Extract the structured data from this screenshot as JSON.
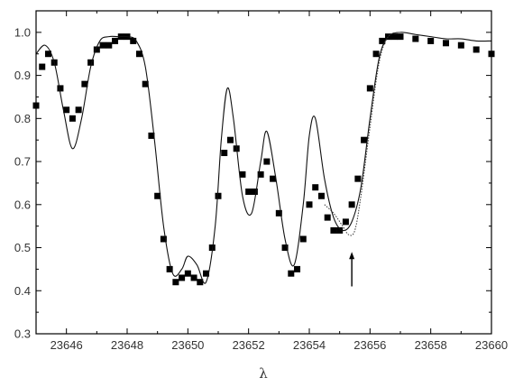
{
  "chart_data": {
    "type": "line",
    "title": "",
    "xlabel": "λ",
    "ylabel": "",
    "xlim": [
      23645,
      23660
    ],
    "ylim": [
      0.3,
      1.05
    ],
    "grid": false,
    "legend": "none",
    "x_ticks": [
      23646,
      23648,
      23650,
      23652,
      23654,
      23656,
      23658,
      23660
    ],
    "x_tick_labels": [
      "23646",
      "23648",
      "23650",
      "23652",
      "23654",
      "23656",
      "23658",
      "23660"
    ],
    "y_ticks": [
      0.3,
      0.4,
      0.5,
      0.6,
      0.7,
      0.8,
      0.9,
      1.0
    ],
    "y_tick_labels": [
      "0.3",
      "0.4",
      "0.5",
      "0.6",
      "0.7",
      "0.8",
      "0.9",
      "1.0"
    ],
    "series": [
      {
        "style": "markers",
        "color": "#000000",
        "x": [
          23645.0,
          23645.2,
          23645.4,
          23645.6,
          23645.8,
          23646.0,
          23646.2,
          23646.4,
          23646.6,
          23646.8,
          23647.0,
          23647.2,
          23647.4,
          23647.6,
          23647.8,
          23648.0,
          23648.2,
          23648.4,
          23648.6,
          23648.8,
          23649.0,
          23649.2,
          23649.4,
          23649.6,
          23649.8,
          23650.0,
          23650.2,
          23650.4,
          23650.6,
          23650.8,
          23651.0,
          23651.2,
          23651.4,
          23651.6,
          23651.8,
          23652.0,
          23652.2,
          23652.4,
          23652.6,
          23652.8,
          23653.0,
          23653.2,
          23653.4,
          23653.6,
          23653.8,
          23654.0,
          23654.2,
          23654.4,
          23654.6,
          23654.8,
          23655.0,
          23655.2,
          23655.4,
          23655.6,
          23655.8,
          23656.0,
          23656.2,
          23656.4,
          23656.6,
          23656.8,
          23657.0,
          23657.5,
          23658.0,
          23658.5,
          23659.0,
          23659.5,
          23660.0
        ],
        "values": [
          0.83,
          0.92,
          0.95,
          0.93,
          0.87,
          0.82,
          0.8,
          0.82,
          0.88,
          0.93,
          0.96,
          0.97,
          0.97,
          0.98,
          0.99,
          0.99,
          0.98,
          0.95,
          0.88,
          0.76,
          0.62,
          0.52,
          0.45,
          0.42,
          0.43,
          0.44,
          0.43,
          0.42,
          0.44,
          0.5,
          0.62,
          0.72,
          0.75,
          0.73,
          0.67,
          0.63,
          0.63,
          0.67,
          0.7,
          0.66,
          0.58,
          0.5,
          0.44,
          0.45,
          0.52,
          0.6,
          0.64,
          0.62,
          0.57,
          0.54,
          0.54,
          0.56,
          0.6,
          0.66,
          0.75,
          0.87,
          0.95,
          0.98,
          0.99,
          0.99,
          0.99,
          0.985,
          0.98,
          0.975,
          0.97,
          0.96,
          0.95
        ]
      },
      {
        "style": "solid",
        "color": "#111111",
        "x": [
          23645.0,
          23645.3,
          23645.6,
          23645.9,
          23646.2,
          23646.5,
          23646.8,
          23647.1,
          23647.4,
          23647.7,
          23648.0,
          23648.3,
          23648.6,
          23648.9,
          23649.2,
          23649.5,
          23649.8,
          23650.0,
          23650.3,
          23650.6,
          23650.9,
          23651.1,
          23651.3,
          23651.5,
          23651.8,
          23652.1,
          23652.4,
          23652.6,
          23652.9,
          23653.2,
          23653.5,
          23653.8,
          23654.0,
          23654.2,
          23654.5,
          23654.8,
          23655.1,
          23655.4,
          23655.7,
          23656.0,
          23656.3,
          23656.6,
          23657.0,
          23657.5,
          23658.0,
          23658.5,
          23659.0,
          23659.5,
          23660.0
        ],
        "values": [
          0.95,
          0.97,
          0.93,
          0.82,
          0.73,
          0.8,
          0.92,
          0.98,
          0.99,
          0.99,
          0.99,
          0.98,
          0.92,
          0.75,
          0.55,
          0.44,
          0.45,
          0.48,
          0.46,
          0.42,
          0.55,
          0.75,
          0.87,
          0.8,
          0.62,
          0.58,
          0.7,
          0.77,
          0.66,
          0.52,
          0.46,
          0.6,
          0.76,
          0.8,
          0.66,
          0.57,
          0.54,
          0.56,
          0.64,
          0.8,
          0.94,
          0.99,
          1.0,
          0.995,
          0.99,
          0.985,
          0.985,
          0.98,
          0.98
        ]
      },
      {
        "style": "dotted",
        "color": "#333333",
        "x": [
          23654.5,
          23654.8,
          23655.1,
          23655.3,
          23655.5,
          23655.7,
          23656.0,
          23656.3,
          23656.6,
          23657.0
        ],
        "values": [
          0.6,
          0.58,
          0.55,
          0.53,
          0.54,
          0.62,
          0.78,
          0.93,
          0.99,
          1.0
        ]
      }
    ],
    "annotations": [
      {
        "type": "arrow",
        "x": 23655.4,
        "y_from": 0.41,
        "y_to": 0.49
      }
    ]
  }
}
